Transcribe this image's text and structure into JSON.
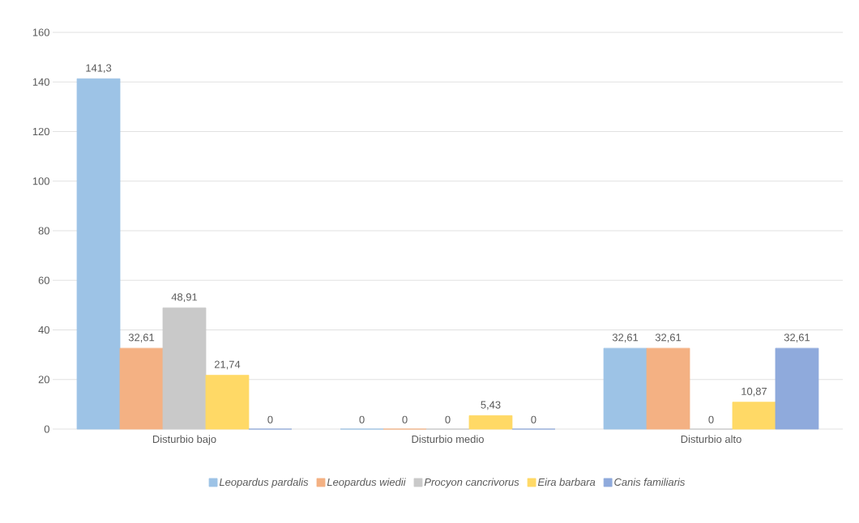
{
  "chart_data": {
    "type": "bar",
    "categories": [
      "Disturbio bajo",
      "Disturbio medio",
      "Disturbio alto"
    ],
    "series": [
      {
        "name": "Leopardus pardalis",
        "color": "#9dc3e6",
        "values": [
          141.3,
          0,
          32.61
        ],
        "value_labels": [
          "141,3",
          "0",
          "32,61"
        ]
      },
      {
        "name": "Leopardus wiedii",
        "color": "#f4b183",
        "values": [
          32.61,
          0,
          32.61
        ],
        "value_labels": [
          "32,61",
          "0",
          "32,61"
        ]
      },
      {
        "name": "Procyon cancrivorus",
        "color": "#c9c9c9",
        "values": [
          48.91,
          0,
          0
        ],
        "value_labels": [
          "48,91",
          "0",
          "0"
        ]
      },
      {
        "name": "Eira barbara",
        "color": "#ffd966",
        "values": [
          21.74,
          5.43,
          10.87
        ],
        "value_labels": [
          "21,74",
          "5,43",
          "10,87"
        ]
      },
      {
        "name": "Canis familiaris",
        "color": "#8faadc",
        "values": [
          0,
          0,
          32.61
        ],
        "value_labels": [
          "0",
          "0",
          "32,61"
        ]
      }
    ],
    "ylim": [
      0,
      160
    ],
    "yticks": [
      0,
      20,
      40,
      60,
      80,
      100,
      120,
      140,
      160
    ],
    "grid": "y",
    "legend": "bottom"
  }
}
